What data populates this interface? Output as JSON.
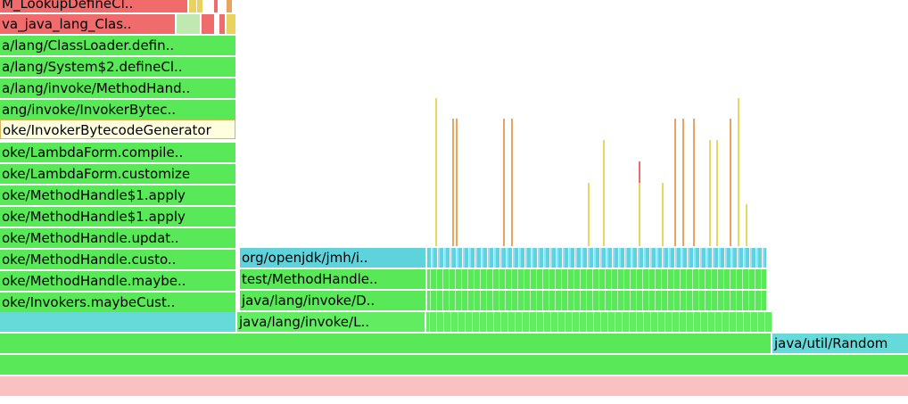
{
  "left_stack": [
    "M_LookupDefineCl..",
    "va_java_lang_Clas..",
    "a/lang/ClassLoader.defin..",
    "a/lang/System$2.defineCl..",
    "a/lang/invoke/MethodHand..",
    "ang/invoke/InvokerBytec..",
    "oke/InvokerBytecodeGenerator",
    "oke/LambdaForm.compile..",
    "oke/LambdaForm.customize",
    "oke/MethodHandle$1.apply",
    "oke/MethodHandle$1.apply",
    "oke/MethodHandle.updat..",
    "oke/MethodHandle.custo..",
    "oke/MethodHandle.maybe..",
    "oke/Invokers.maybeCust.."
  ],
  "middle_stack": [
    "org/openjdk/jmh/i..",
    "test/MethodHandle..",
    "java/lang/invoke/D..",
    "java/lang/invoke/L.."
  ],
  "right_frame": "java/util/Random",
  "colors": {
    "green": "#58e858",
    "teal": "#66d9d9",
    "red": "#f06b6b",
    "pink": "#f9c1c1",
    "highlight": "#ffffe0"
  }
}
